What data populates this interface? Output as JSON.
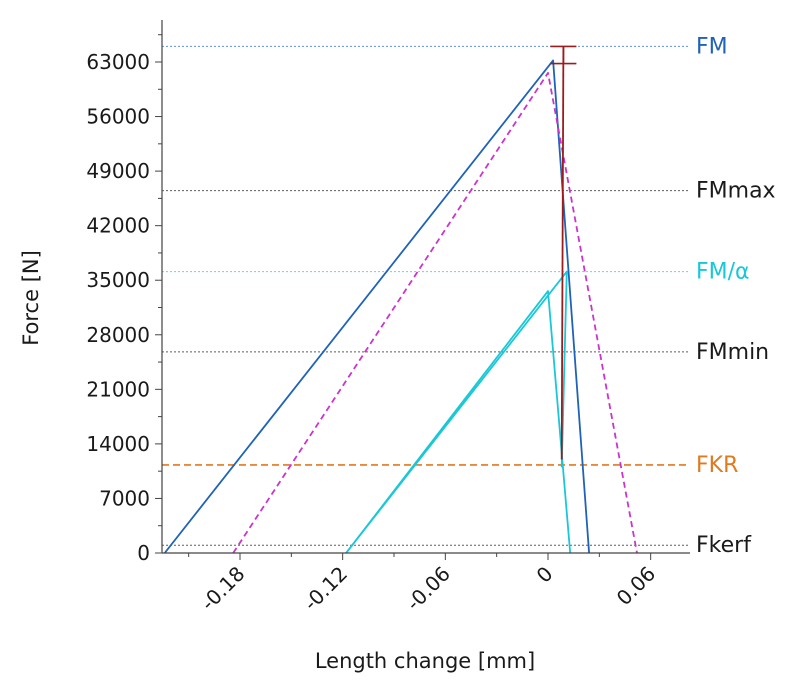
{
  "chart_data": {
    "type": "line",
    "xlabel": "Length change [mm]",
    "ylabel": "Force [N]",
    "xlim": [
      -0.224,
      0.088
    ],
    "ylim": [
      0,
      70000
    ],
    "x_ticks": [
      -0.18,
      -0.12,
      -0.06,
      0,
      0.06
    ],
    "x_tick_labels": [
      "-0.18",
      "-0.12",
      "-0.06",
      "0",
      "0.06"
    ],
    "y_ticks": [
      0,
      7000,
      14000,
      21000,
      28000,
      35000,
      42000,
      49000,
      56000,
      63000
    ],
    "y_tick_labels": [
      "0",
      "7000",
      "14000",
      "21000",
      "28000",
      "35000",
      "42000",
      "49000",
      "56000",
      "63000"
    ],
    "grid": false,
    "reference_lines": [
      {
        "label": "FM",
        "y": 65000,
        "color": "#1f63b8",
        "style": "dotted"
      },
      {
        "label": "FMmax",
        "y": 46500,
        "color": "#1a1a1a",
        "style": "dotted"
      },
      {
        "label": "FM/α",
        "y": 36100,
        "color": "#19c8d8",
        "style": "dotted"
      },
      {
        "label": "FMmin",
        "y": 25800,
        "color": "#1a1a1a",
        "style": "dotted"
      },
      {
        "label": "FKR",
        "y": 11300,
        "color": "#e07a1f",
        "style": "dashed"
      },
      {
        "label": "Fkerf",
        "y": 1000,
        "color": "#1a1a1a",
        "style": "dotted"
      }
    ],
    "series": [
      {
        "color": "#1f63b8",
        "style": "solid",
        "x": [
          -0.224,
          0.003,
          0.024
        ],
        "y": [
          0,
          63200,
          0
        ]
      },
      {
        "color": "#cc33cc",
        "style": "dashed",
        "x": [
          -0.184,
          0.0,
          0.052
        ],
        "y": [
          0,
          61600,
          0
        ]
      },
      {
        "color": "#19c8d8",
        "style": "solid",
        "x": [
          -0.118,
          0.0,
          0.013
        ],
        "y": [
          0,
          33600,
          0
        ]
      },
      {
        "color": "#19c8d8",
        "style": "solid",
        "x": [
          -0.118,
          0.011,
          0.008
        ],
        "y": [
          0,
          36100,
          11000
        ]
      },
      {
        "color": "#9b1c1c",
        "style": "solid",
        "x": [
          0.008,
          0.009
        ],
        "y": [
          12000,
          65000
        ]
      }
    ],
    "error_bar": {
      "x": 0.009,
      "y_low": 62800,
      "y_high": 65000,
      "color": "#9b1c1c"
    }
  }
}
